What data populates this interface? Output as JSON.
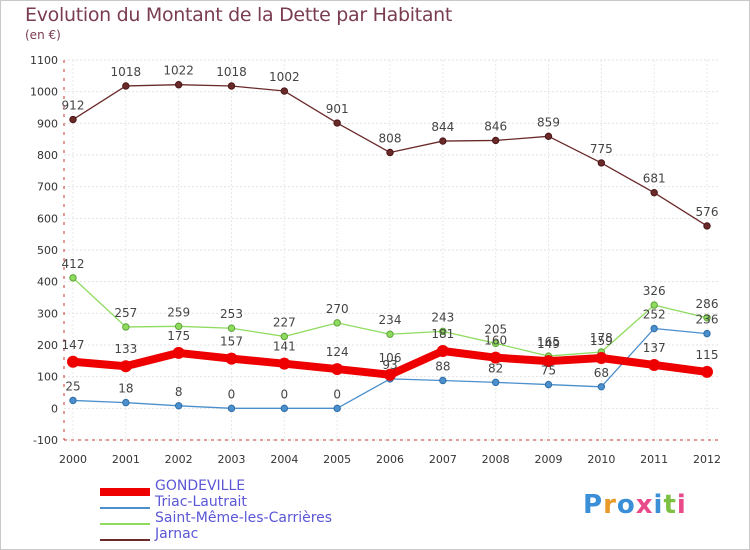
{
  "title": "Evolution du Montant de la Dette par Habitant",
  "subtitle": "(en €)",
  "logo_text": "Proxiti",
  "chart_data": {
    "type": "line",
    "title": "Evolution du Montant de la Dette par Habitant",
    "subtitle": "(en €)",
    "xlabel": "",
    "ylabel": "",
    "x": [
      "2000",
      "2001",
      "2002",
      "2003",
      "2004",
      "2005",
      "2006",
      "2007",
      "2008",
      "2009",
      "2010",
      "2011",
      "2012"
    ],
    "ylim": [
      -100,
      1100
    ],
    "yticks": [
      -100,
      0,
      100,
      200,
      300,
      400,
      500,
      600,
      700,
      800,
      900,
      1000,
      1100
    ],
    "grid": true,
    "legend": "bottom-left",
    "series": [
      {
        "name": "GONDEVILLE",
        "color": "#ee0000",
        "values": [
          147,
          133,
          175,
          157,
          141,
          124,
          106,
          181,
          160,
          149,
          159,
          137,
          115
        ]
      },
      {
        "name": "Triac-Lautrait",
        "color": "#4b8fcc",
        "values": [
          25,
          18,
          8,
          0,
          0,
          0,
          93,
          88,
          82,
          75,
          68,
          252,
          236
        ]
      },
      {
        "name": "Saint-Même-les-Carrières",
        "color": "#8edb5e",
        "values": [
          412,
          257,
          259,
          253,
          227,
          270,
          234,
          243,
          205,
          165,
          178,
          326,
          286
        ]
      },
      {
        "name": "Jarnac",
        "color": "#6b2a2a",
        "values": [
          912,
          1018,
          1022,
          1018,
          1002,
          901,
          808,
          844,
          846,
          859,
          775,
          681,
          576
        ]
      }
    ]
  }
}
